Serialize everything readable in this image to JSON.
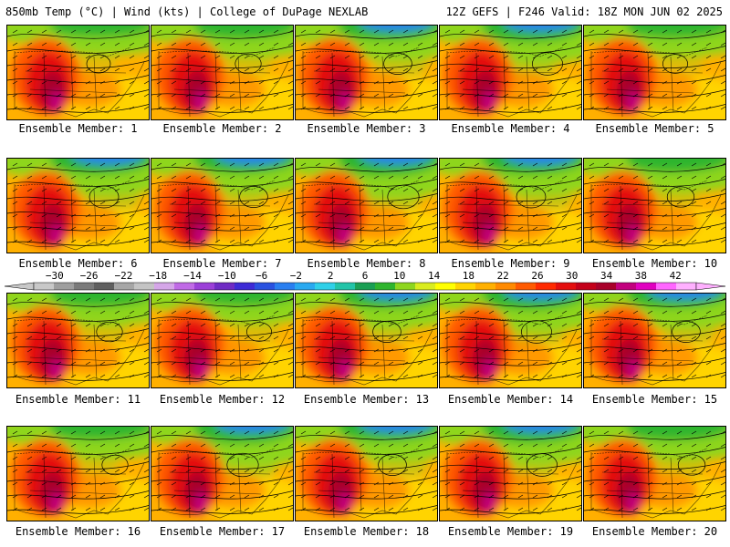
{
  "header": {
    "left_title": "850mb Temp (°C) | Wind (kts) | College of DuPage NEXLAB",
    "right_title": "12Z GEFS | F246 Valid: 18Z MON JUN 02 2025"
  },
  "colorbar": {
    "labels": [
      "−30",
      "−26",
      "−22",
      "−18",
      "−14",
      "−10",
      "−6",
      "−2",
      "2",
      "6",
      "10",
      "14",
      "18",
      "22",
      "26",
      "30",
      "34",
      "38",
      "42"
    ],
    "colors": [
      "#c8c8c8",
      "#9e9e9e",
      "#7a7a7a",
      "#5f5f5f",
      "#a6a6a6",
      "#c4c4c4",
      "#d5a6e8",
      "#c06ae6",
      "#9b3fd8",
      "#6f2bc4",
      "#3e2bd6",
      "#2a52e0",
      "#2a7ff0",
      "#29a9f0",
      "#2fd0e8",
      "#22c4a8",
      "#1a9f54",
      "#2fb52e",
      "#8ed61f",
      "#d9ec1f",
      "#ffff00",
      "#ffd400",
      "#ffb000",
      "#ff8a00",
      "#ff5a00",
      "#ff2a00",
      "#e40e0e",
      "#c4001a",
      "#a8002a",
      "#c2007e",
      "#e000c0",
      "#ff66ff",
      "#ffb0ff"
    ]
  },
  "panels": [
    {
      "caption": "Ensemble Member: 1",
      "cool": 0.25
    },
    {
      "caption": "Ensemble Member: 2",
      "cool": 0.35
    },
    {
      "caption": "Ensemble Member: 3",
      "cool": 0.45
    },
    {
      "caption": "Ensemble Member: 4",
      "cool": 0.55
    },
    {
      "caption": "Ensemble Member: 5",
      "cool": 0.3
    },
    {
      "caption": "Ensemble Member: 6",
      "cool": 0.5
    },
    {
      "caption": "Ensemble Member: 7",
      "cool": 0.45
    },
    {
      "caption": "Ensemble Member: 8",
      "cool": 0.6
    },
    {
      "caption": "Ensemble Member: 9",
      "cool": 0.5
    },
    {
      "caption": "Ensemble Member: 10",
      "cool": 0.4
    },
    {
      "caption": "Ensemble Member: 11",
      "cool": 0.35
    },
    {
      "caption": "Ensemble Member: 12",
      "cool": 0.3
    },
    {
      "caption": "Ensemble Member: 13",
      "cool": 0.45
    },
    {
      "caption": "Ensemble Member: 14",
      "cool": 0.55
    },
    {
      "caption": "Ensemble Member: 15",
      "cool": 0.45
    },
    {
      "caption": "Ensemble Member: 16",
      "cool": 0.35
    },
    {
      "caption": "Ensemble Member: 17",
      "cool": 0.6
    },
    {
      "caption": "Ensemble Member: 18",
      "cool": 0.45
    },
    {
      "caption": "Ensemble Member: 19",
      "cool": 0.55
    },
    {
      "caption": "Ensemble Member: 20",
      "cool": 0.4
    }
  ]
}
